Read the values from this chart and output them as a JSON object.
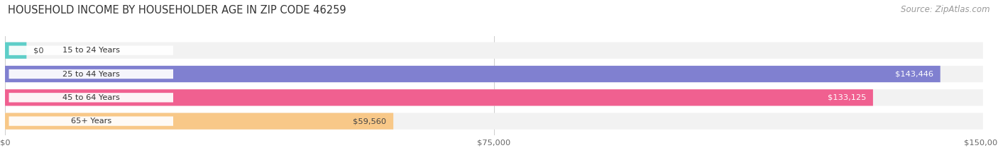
{
  "title": "HOUSEHOLD INCOME BY HOUSEHOLDER AGE IN ZIP CODE 46259",
  "source": "Source: ZipAtlas.com",
  "categories": [
    "15 to 24 Years",
    "25 to 44 Years",
    "45 to 64 Years",
    "65+ Years"
  ],
  "values": [
    0,
    143446,
    133125,
    59560
  ],
  "labels": [
    "$0",
    "$143,446",
    "$133,125",
    "$59,560"
  ],
  "bar_colors": [
    "#5ecec8",
    "#8080d0",
    "#f06090",
    "#f8c888"
  ],
  "bar_bg_color": "#efefef",
  "label_inside_color": [
    "#444444",
    "#ffffff",
    "#ffffff",
    "#444444"
  ],
  "xlim": [
    0,
    150000
  ],
  "xtick_labels": [
    "$0",
    "$75,000",
    "$150,000"
  ],
  "title_fontsize": 10.5,
  "source_fontsize": 8.5,
  "bar_height": 0.58,
  "bg_color": "#ffffff",
  "bar_row_bg": "#f2f2f2"
}
